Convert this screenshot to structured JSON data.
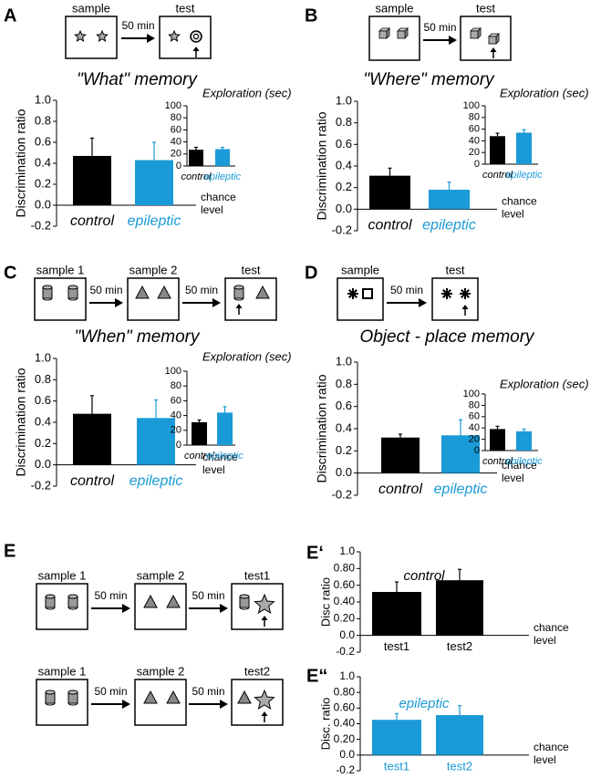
{
  "panels": [
    {
      "label": "A",
      "steps": [
        "sample",
        "test"
      ],
      "delays": [
        "50 min"
      ]
    },
    {
      "label": "B",
      "steps": [
        "sample",
        "test"
      ],
      "delays": [
        "50 min"
      ]
    },
    {
      "label": "C",
      "steps": [
        "sample 1",
        "sample 2",
        "test"
      ],
      "delays": [
        "50 min",
        "50 min"
      ]
    },
    {
      "label": "D",
      "steps": [
        "sample",
        "test"
      ],
      "delays": [
        "50 min"
      ]
    },
    {
      "label": "E",
      "rows": [
        {
          "steps": [
            "sample 1",
            "sample 2",
            "test1"
          ],
          "delays": [
            "50 min",
            "50 min"
          ]
        },
        {
          "steps": [
            "sample 1",
            "sample 2",
            "test2"
          ],
          "delays": [
            "50 min",
            "50 min"
          ]
        }
      ]
    },
    {
      "label": "E‘"
    },
    {
      "label": "E“"
    }
  ],
  "chart_data": [
    {
      "type": "bar",
      "title": "\"What\" memory",
      "ylabel": "Discrimination ratio",
      "categories": [
        "control",
        "epileptic"
      ],
      "colors": [
        "#000000",
        "#1a9ad6"
      ],
      "values": [
        0.47,
        0.43
      ],
      "errors": [
        0.17,
        0.17
      ],
      "ylim": [
        -0.2,
        1.0
      ],
      "yticks": [
        {
          "value": 1,
          "label": "1.0"
        },
        0.8,
        0.6,
        0.4,
        0.2,
        {
          "value": 0,
          "label": "0.0"
        },
        -0.2
      ],
      "annotation": [
        "chance",
        "level"
      ]
    },
    {
      "type": "bar",
      "title": "Exploration (sec)",
      "categories": [
        "control",
        "epileptic"
      ],
      "colors": [
        "#000000",
        "#1a9ad6"
      ],
      "values": [
        27,
        28
      ],
      "errors": [
        4,
        3
      ],
      "ylim": [
        0,
        100
      ],
      "yticks": [
        0,
        20,
        40,
        60,
        80,
        100
      ]
    },
    {
      "type": "bar",
      "title": "\"Where\" memory",
      "ylabel": "Discrimination ratio",
      "categories": [
        "control",
        "epileptic"
      ],
      "colors": [
        "#000000",
        "#1a9ad6"
      ],
      "values": [
        0.31,
        0.18
      ],
      "errors": [
        0.07,
        0.07
      ],
      "ylim": [
        -0.2,
        1.0
      ],
      "yticks": [
        {
          "value": 1,
          "label": "1.0"
        },
        0.8,
        0.6,
        0.4,
        0.2,
        {
          "value": 0,
          "label": "0.0"
        },
        -0.2
      ],
      "annotation": [
        "chance",
        "level"
      ]
    },
    {
      "type": "bar",
      "title": "Exploration (sec)",
      "categories": [
        "control",
        "epileptic"
      ],
      "colors": [
        "#000000",
        "#1a9ad6"
      ],
      "values": [
        48,
        54
      ],
      "errors": [
        5,
        5
      ],
      "ylim": [
        0,
        100
      ],
      "yticks": [
        0,
        20,
        40,
        60,
        80,
        100
      ]
    },
    {
      "type": "bar",
      "title": "\"When\" memory",
      "ylabel": "Discrimination ratio",
      "categories": [
        "control",
        "epileptic"
      ],
      "colors": [
        "#000000",
        "#1a9ad6"
      ],
      "values": [
        0.48,
        0.44
      ],
      "errors": [
        0.17,
        0.17
      ],
      "ylim": [
        -0.2,
        1.0
      ],
      "yticks": [
        {
          "value": 1,
          "label": "1.0"
        },
        0.8,
        0.6,
        0.4,
        0.2,
        {
          "value": 0,
          "label": "0.0"
        },
        -0.2
      ],
      "annotation": [
        "chance",
        "level"
      ]
    },
    {
      "type": "bar",
      "title": "Exploration (sec)",
      "categories": [
        "control",
        "epileptic"
      ],
      "colors": [
        "#000000",
        "#1a9ad6"
      ],
      "values": [
        31,
        44
      ],
      "errors": [
        3,
        8
      ],
      "ylim": [
        0,
        100
      ],
      "yticks": [
        0,
        20,
        40,
        60,
        80,
        100
      ]
    },
    {
      "type": "bar",
      "title": "Object - place memory",
      "ylabel": "Discrimination ratio",
      "categories": [
        "control",
        "epileptic"
      ],
      "colors": [
        "#000000",
        "#1a9ad6"
      ],
      "values": [
        0.32,
        0.34
      ],
      "errors": [
        0.03,
        0.14
      ],
      "ylim": [
        -0.2,
        1.0
      ],
      "yticks": [
        {
          "value": 1,
          "label": "1.0"
        },
        0.8,
        0.6,
        0.4,
        0.2,
        {
          "value": 0,
          "label": "0.0"
        },
        -0.2
      ],
      "annotation": [
        "chance",
        "level"
      ]
    },
    {
      "type": "bar",
      "title": "Exploration (sec)",
      "categories": [
        "control",
        "epileptic"
      ],
      "colors": [
        "#000000",
        "#1a9ad6"
      ],
      "values": [
        38,
        34
      ],
      "errors": [
        5,
        4
      ],
      "ylim": [
        0,
        100
      ],
      "yticks": [
        0,
        20,
        40,
        60,
        80,
        100
      ]
    },
    {
      "type": "bar",
      "title": "control",
      "title_color": "#000000",
      "ylabel": "Disc ratio",
      "categories": [
        "test1",
        "test2"
      ],
      "colors": [
        "#000000",
        "#000000"
      ],
      "values": [
        0.52,
        0.66
      ],
      "errors": [
        0.12,
        0.13
      ],
      "ylim": [
        -0.2,
        1.0
      ],
      "yticks": [
        {
          "value": 1,
          "label": "1.0"
        },
        {
          "value": 0.8,
          "label": "0.80"
        },
        {
          "value": 0.6,
          "label": "0.60"
        },
        {
          "value": 0.4,
          "label": "0.40"
        },
        {
          "value": 0.2,
          "label": "0.20"
        },
        {
          "value": 0,
          "label": "0.0"
        },
        -0.2
      ],
      "annotation": [
        "chance",
        "level"
      ]
    },
    {
      "type": "bar",
      "title": "epileptic",
      "title_color": "#1a9ad6",
      "ylabel": "Disc. ratio",
      "categories": [
        "test1",
        "test2"
      ],
      "colors": [
        "#1a9ad6",
        "#1a9ad6"
      ],
      "values": [
        0.45,
        0.51
      ],
      "errors": [
        0.08,
        0.12
      ],
      "ylim": [
        -0.2,
        1.0
      ],
      "yticks": [
        {
          "value": 1,
          "label": "1.0"
        },
        {
          "value": 0.8,
          "label": "0.80"
        },
        {
          "value": 0.6,
          "label": "0.60"
        },
        {
          "value": 0.4,
          "label": "0.40"
        },
        {
          "value": 0.2,
          "label": "0.20"
        },
        {
          "value": 0,
          "label": "0.0"
        },
        -0.2
      ],
      "annotation": [
        "chance",
        "level"
      ]
    }
  ]
}
